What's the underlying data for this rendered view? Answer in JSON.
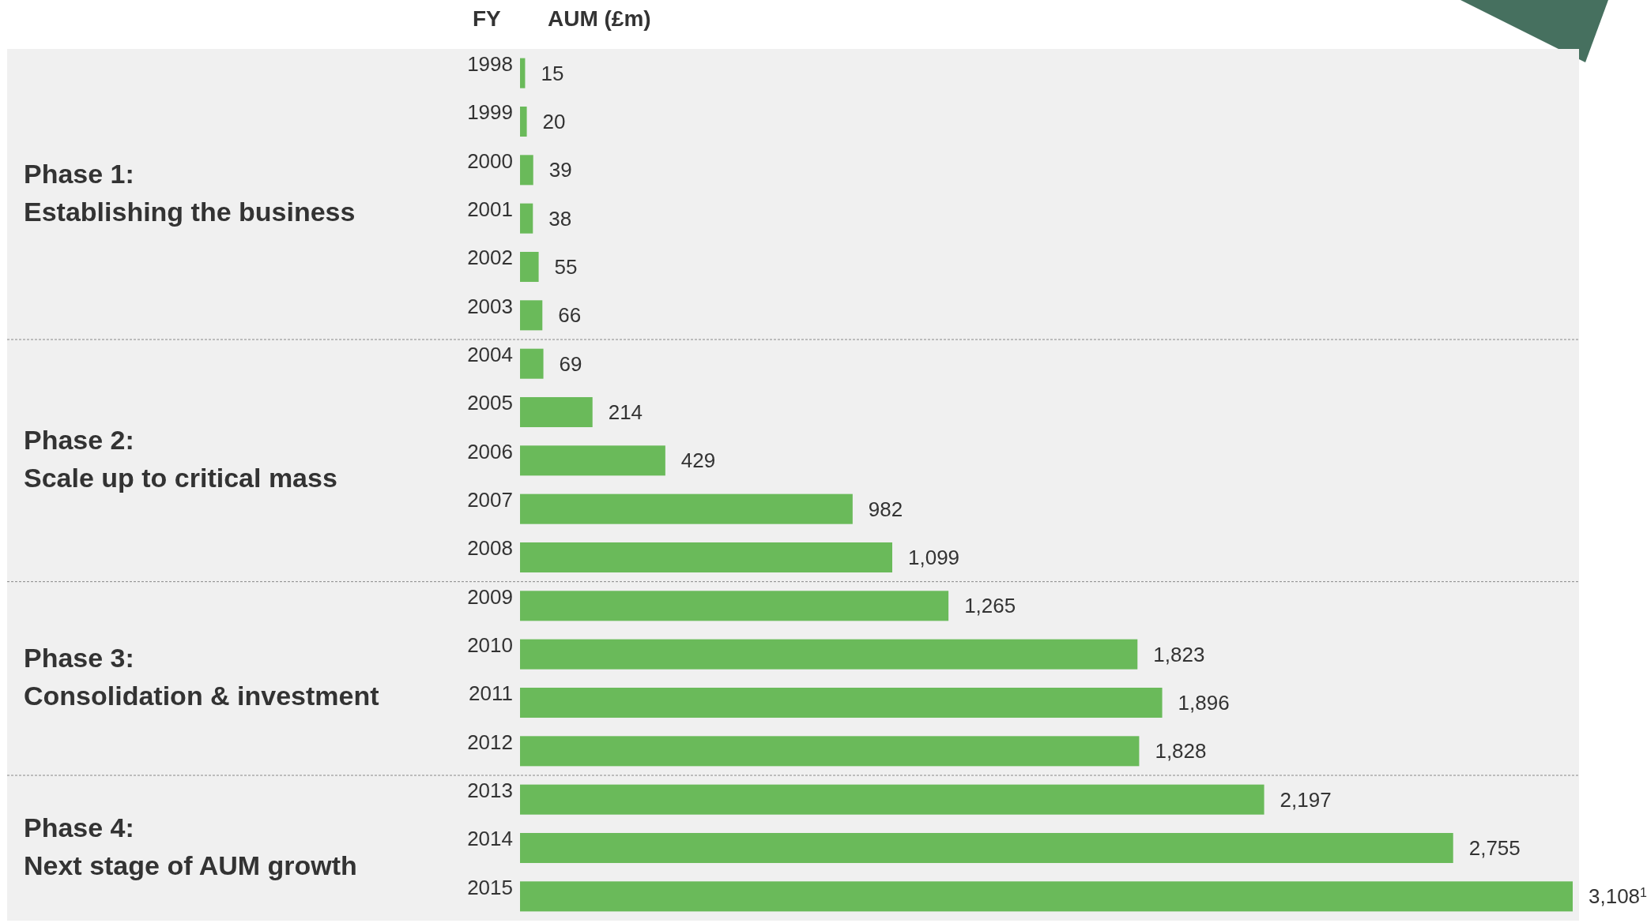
{
  "chart_data": {
    "type": "bar",
    "orientation": "horizontal",
    "ylabel": "FY",
    "xlabel": "AUM (£m)",
    "categories": [
      "1998",
      "1999",
      "2000",
      "2001",
      "2002",
      "2003",
      "2004",
      "2005",
      "2006",
      "2007",
      "2008",
      "2009",
      "2010",
      "2011",
      "2012",
      "2013",
      "2014",
      "2015"
    ],
    "values": [
      15,
      20,
      39,
      38,
      55,
      66,
      69,
      214,
      429,
      982,
      1099,
      1265,
      1823,
      1896,
      1828,
      2197,
      2755,
      3108
    ],
    "value_labels": [
      "15",
      "20",
      "39",
      "38",
      "55",
      "66",
      "69",
      "214",
      "429",
      "982",
      "1,099",
      "1,265",
      "1,823",
      "1,896",
      "1,828",
      "2,197",
      "2,755",
      "3,108$^{1}$"
    ],
    "color": "#6aba5a",
    "bands": [
      {
        "axis": "y",
        "from": "1998",
        "to": "2003",
        "label": "Phase 1:\nEstablishing the business",
        "color": "#f0f0f0"
      },
      {
        "axis": "y",
        "from": "2004",
        "to": "2008",
        "label": "Phase 2:\nScale up to critical mass",
        "color": "#f0f0f0"
      },
      {
        "axis": "y",
        "from": "2009",
        "to": "2012",
        "label": "Phase 3:\nConsolidation & investment",
        "color": "#f0f0f0"
      },
      {
        "axis": "y",
        "from": "2013",
        "to": "2015",
        "label": "Phase 4:\nNext stage of AUM growth",
        "color": "#f0f0f0"
      }
    ]
  }
}
